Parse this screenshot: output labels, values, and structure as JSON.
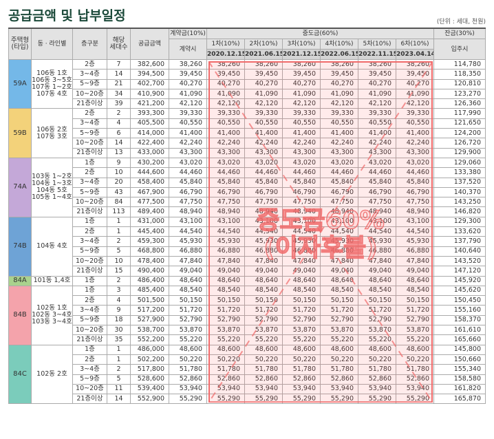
{
  "title": "공급금액 및 납부일정",
  "unit": "(단위 : 세대, 천원)",
  "header": {
    "type": [
      "주택형",
      "(타입)"
    ],
    "dong": "동 · 라인별",
    "floor": "층구분",
    "units": [
      "해당",
      "세대수"
    ],
    "price": "공급금액",
    "contract": "계약금(10%)",
    "contract_when": "계약시",
    "middle": "중도금(60%)",
    "installments": [
      {
        "label": "1차(10%)",
        "date": "2020.12.15"
      },
      {
        "label": "2차(10%)",
        "date": "2021.06.15"
      },
      {
        "label": "3차(10%)",
        "date": "2021.12.15"
      },
      {
        "label": "4차(10%)",
        "date": "2022.06.15"
      },
      {
        "label": "5차(10%)",
        "date": "2022.11.15"
      },
      {
        "label": "6차(10%)",
        "date": "2023.04.14"
      }
    ],
    "balance": "잔금(30%)",
    "balance_when": "입주시"
  },
  "groups": [
    {
      "type": "59A",
      "color": "#74b8e8",
      "dong": [
        "106동 1호",
        "106동 3~5호",
        "107동 1~2호",
        "107동 4호"
      ],
      "rows": [
        [
          "2층",
          "7",
          "382,600",
          "38,260",
          "38,260",
          "38,260",
          "38,260",
          "38,260",
          "38,260",
          "38,260",
          "114,780"
        ],
        [
          "3~4층",
          "14",
          "394,500",
          "39,450",
          "39,450",
          "39,450",
          "39,450",
          "39,450",
          "39,450",
          "39,450",
          "118,350"
        ],
        [
          "5~9층",
          "21",
          "402,700",
          "40,270",
          "40,270",
          "40,270",
          "40,270",
          "40,270",
          "40,270",
          "40,270",
          "120,810"
        ],
        [
          "10~20층",
          "34",
          "410,900",
          "41,090",
          "41,090",
          "41,090",
          "41,090",
          "41,090",
          "41,090",
          "41,090",
          "123,270"
        ],
        [
          "21층이상",
          "39",
          "421,200",
          "42,120",
          "42,120",
          "42,120",
          "42,120",
          "42,120",
          "42,120",
          "42,120",
          "126,360"
        ]
      ]
    },
    {
      "type": "59B",
      "color": "#f3d27a",
      "dong": [
        "106동 2호",
        "107동 3호"
      ],
      "rows": [
        [
          "2층",
          "2",
          "393,300",
          "39,330",
          "39,330",
          "39,330",
          "39,330",
          "39,330",
          "39,330",
          "39,330",
          "117,990"
        ],
        [
          "3~4층",
          "4",
          "405,500",
          "40,550",
          "40,550",
          "40,550",
          "40,550",
          "40,550",
          "40,550",
          "40,550",
          "121,650"
        ],
        [
          "5~9층",
          "6",
          "414,000",
          "41,400",
          "41,400",
          "41,400",
          "41,400",
          "41,400",
          "41,400",
          "41,400",
          "124,200"
        ],
        [
          "10~20층",
          "14",
          "422,400",
          "42,240",
          "42,240",
          "42,240",
          "42,240",
          "42,240",
          "42,240",
          "42,240",
          "126,720"
        ],
        [
          "21층이상",
          "13",
          "433,000",
          "43,300",
          "43,300",
          "43,300",
          "43,300",
          "43,300",
          "43,300",
          "43,300",
          "129,900"
        ]
      ]
    },
    {
      "type": "74A",
      "color": "#c4a8d8",
      "dong": [
        "103동 1~2호",
        "104동 1~3호",
        "104동 5호",
        "105동 1~4호"
      ],
      "rows": [
        [
          "1층",
          "9",
          "430,200",
          "43,020",
          "43,020",
          "43,020",
          "43,020",
          "43,020",
          "43,020",
          "43,020",
          "129,060"
        ],
        [
          "2층",
          "10",
          "444,600",
          "44,460",
          "44,460",
          "44,460",
          "44,460",
          "44,460",
          "44,460",
          "44,460",
          "133,380"
        ],
        [
          "3~4층",
          "20",
          "458,400",
          "45,840",
          "45,840",
          "45,840",
          "45,840",
          "45,840",
          "45,840",
          "45,840",
          "137,520"
        ],
        [
          "5~9층",
          "43",
          "467,900",
          "46,790",
          "46,790",
          "46,790",
          "46,790",
          "46,790",
          "46,790",
          "46,790",
          "140,370"
        ],
        [
          "10~20층",
          "84",
          "477,500",
          "47,750",
          "47,750",
          "47,750",
          "47,750",
          "47,750",
          "47,750",
          "47,750",
          "143,250"
        ],
        [
          "21층이상",
          "113",
          "489,400",
          "48,940",
          "48,940",
          "48,940",
          "48,940",
          "48,940",
          "48,940",
          "48,940",
          "146,820"
        ]
      ]
    },
    {
      "type": "74B",
      "color": "#6ea3d6",
      "dong": [
        "104동 4호"
      ],
      "rows": [
        [
          "1층",
          "1",
          "431,000",
          "43,100",
          "43,100",
          "43,100",
          "43,100",
          "43,100",
          "43,100",
          "43,100",
          "129,300"
        ],
        [
          "2층",
          "1",
          "445,400",
          "44,540",
          "44,540",
          "44,540",
          "44,540",
          "44,540",
          "44,540",
          "44,540",
          "133,620"
        ],
        [
          "3~4층",
          "2",
          "459,300",
          "45,930",
          "45,930",
          "45,930",
          "45,930",
          "45,930",
          "45,930",
          "45,930",
          "137,790"
        ],
        [
          "5~9층",
          "5",
          "468,800",
          "46,880",
          "46,880",
          "46,880",
          "46,880",
          "46,880",
          "46,880",
          "46,880",
          "140,640"
        ],
        [
          "10~20층",
          "10",
          "478,400",
          "47,840",
          "47,840",
          "47,840",
          "47,840",
          "47,840",
          "47,840",
          "47,840",
          "143,520"
        ],
        [
          "21층이상",
          "15",
          "490,400",
          "49,040",
          "49,040",
          "49,040",
          "49,040",
          "49,040",
          "49,040",
          "49,040",
          "147,120"
        ]
      ]
    },
    {
      "type": "84A",
      "color": "#a9d28d",
      "dong": [
        "101동 1,4호"
      ],
      "rows": [
        [
          "1층",
          "2",
          "486,400",
          "48,640",
          "48,640",
          "48,640",
          "48,640",
          "48,640",
          "48,640",
          "48,640",
          "145,920"
        ]
      ]
    },
    {
      "type": "84B",
      "color": "#f4a3ab",
      "dong": [
        "102동 1호",
        "102동 3~4호",
        "103동 3~4호"
      ],
      "rows": [
        [
          "1층",
          "3",
          "485,400",
          "48,540",
          "48,540",
          "48,540",
          "48,540",
          "48,540",
          "48,540",
          "48,540",
          "145,620"
        ],
        [
          "2층",
          "4",
          "501,500",
          "50,150",
          "50,150",
          "50,150",
          "50,150",
          "50,150",
          "50,150",
          "50,150",
          "150,450"
        ],
        [
          "3~4층",
          "9",
          "517,200",
          "51,720",
          "51,720",
          "51,720",
          "51,720",
          "51,720",
          "51,720",
          "51,720",
          "155,160"
        ],
        [
          "5~9층",
          "18",
          "527,900",
          "52,790",
          "52,790",
          "52,790",
          "52,790",
          "52,790",
          "52,790",
          "52,790",
          "158,370"
        ],
        [
          "10~20층",
          "30",
          "538,700",
          "53,870",
          "53,870",
          "53,870",
          "53,870",
          "53,870",
          "53,870",
          "53,870",
          "161,610"
        ],
        [
          "21층이상",
          "35",
          "552,200",
          "55,220",
          "55,220",
          "55,220",
          "55,220",
          "55,220",
          "55,220",
          "55,220",
          "165,660"
        ]
      ]
    },
    {
      "type": "84C",
      "color": "#7bccbb",
      "dong": [
        "102동 2호"
      ],
      "rows": [
        [
          "1층",
          "1",
          "486,000",
          "48,600",
          "48,600",
          "48,600",
          "48,600",
          "48,600",
          "48,600",
          "48,600",
          "145,800"
        ],
        [
          "2층",
          "1",
          "502,200",
          "50,220",
          "50,220",
          "50,220",
          "50,220",
          "50,220",
          "50,220",
          "50,220",
          "150,660"
        ],
        [
          "3~4층",
          "2",
          "517,800",
          "51,780",
          "51,780",
          "51,780",
          "51,780",
          "51,780",
          "51,780",
          "51,780",
          "155,340"
        ],
        [
          "5~9층",
          "5",
          "528,600",
          "52,860",
          "52,860",
          "52,860",
          "52,860",
          "52,860",
          "52,860",
          "52,860",
          "158,580"
        ],
        [
          "10~20층",
          "11",
          "539,400",
          "53,940",
          "53,940",
          "53,940",
          "53,940",
          "53,940",
          "53,940",
          "53,940",
          "161,820"
        ],
        [
          "21층이상",
          "14",
          "552,900",
          "55,290",
          "55,290",
          "55,290",
          "55,290",
          "55,290",
          "55,290",
          "55,290",
          "165,870"
        ]
      ]
    }
  ],
  "watermark": [
    "중도금60%",
    "(이자후불)"
  ]
}
